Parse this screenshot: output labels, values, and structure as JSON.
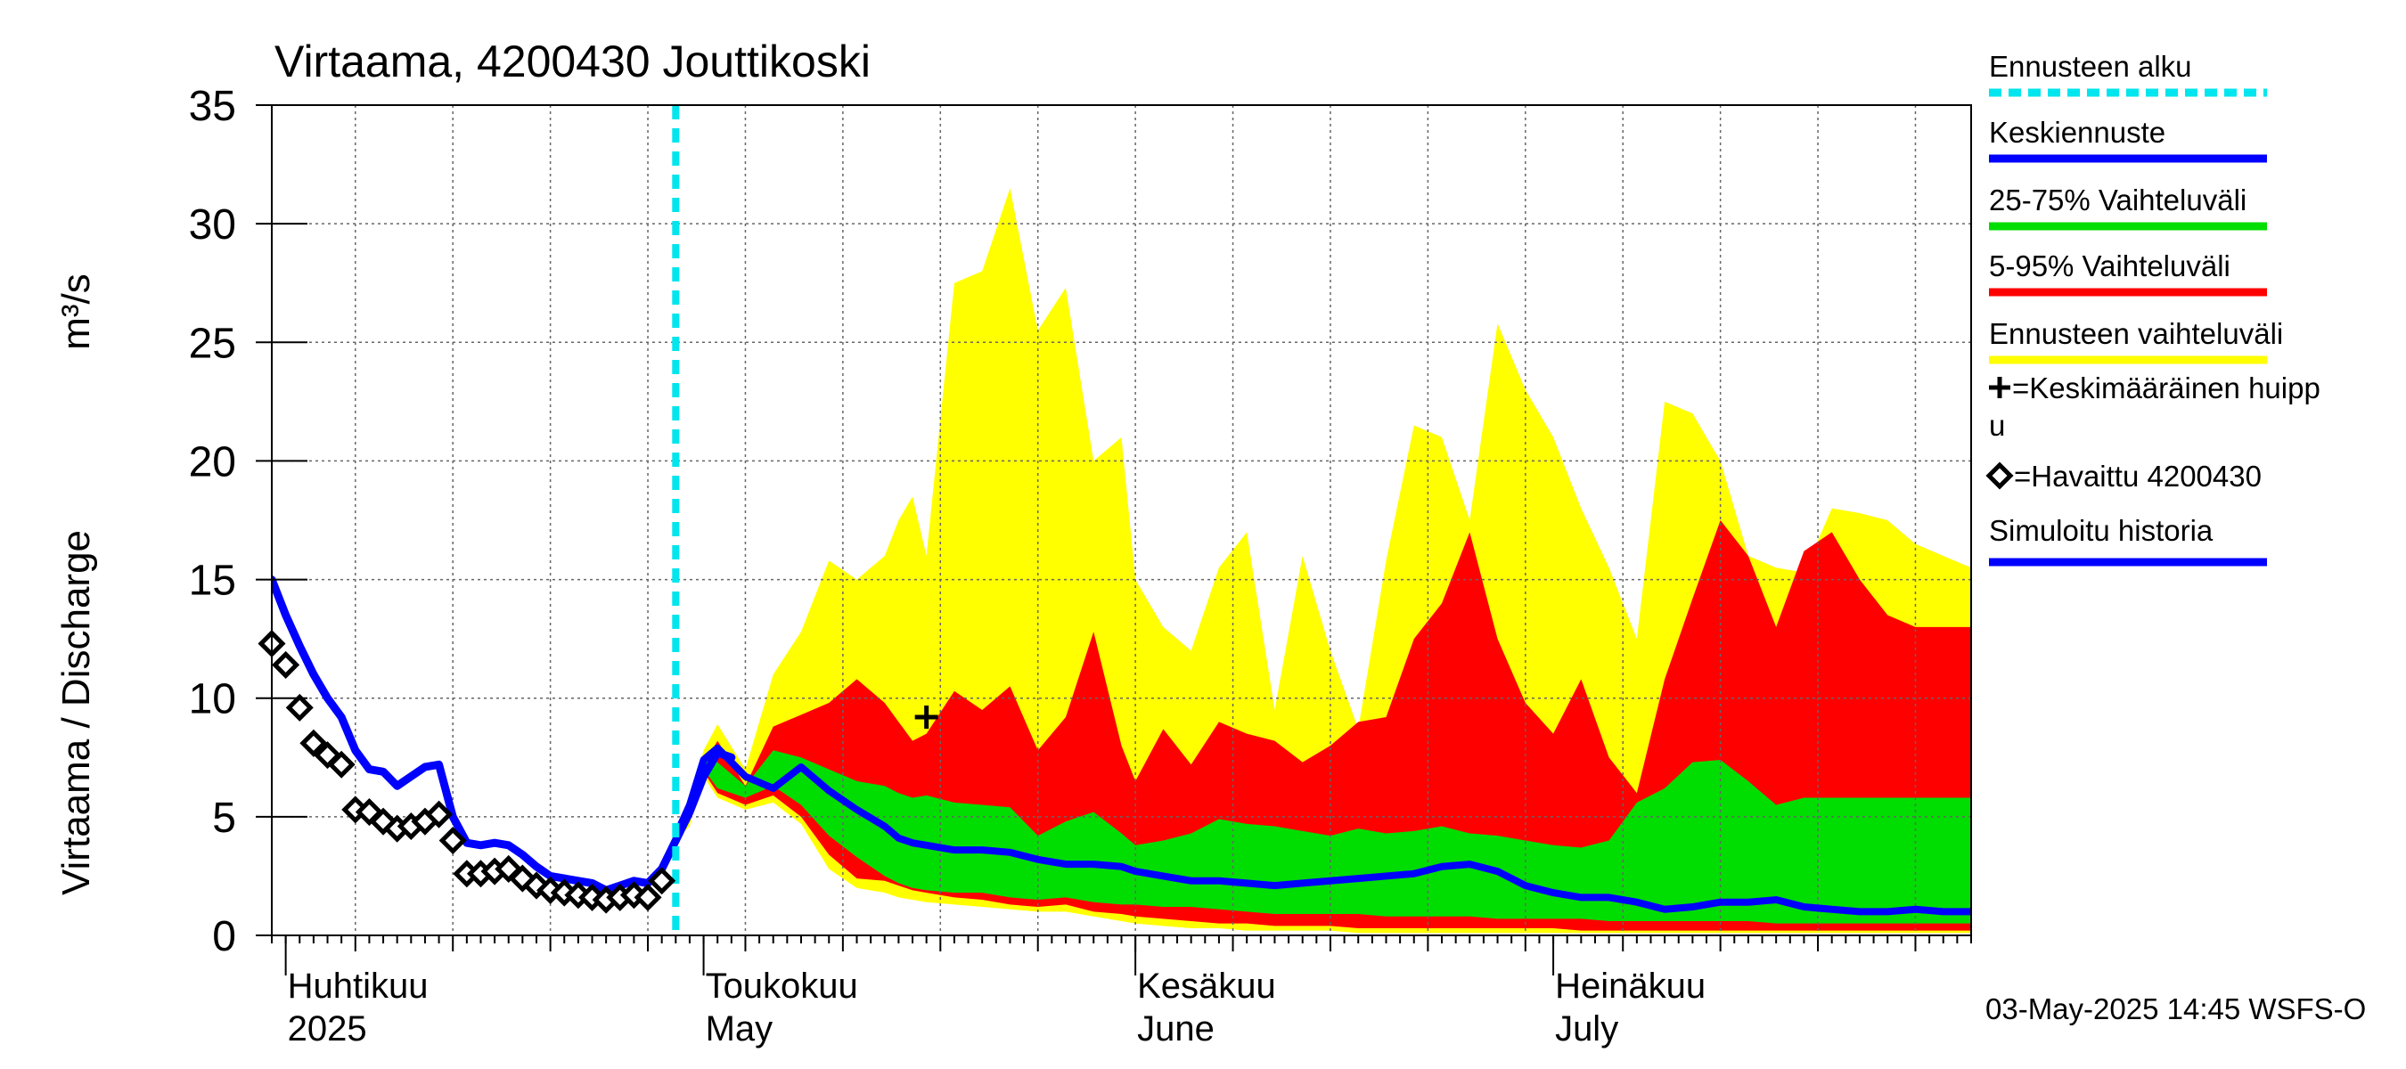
{
  "chart_data": {
    "type": "area",
    "title": "Virtaama, 4200430 Jouttikoski",
    "ylabel": "Virtaama / Discharge",
    "yunit": "m³/s",
    "ylim": [
      0,
      35
    ],
    "yticks": [
      0,
      5,
      10,
      15,
      20,
      25,
      30,
      35
    ],
    "xlim": [
      "2025-03-31",
      "2025-07-31"
    ],
    "x_month_labels": [
      {
        "date": "2025-04-01",
        "line1": "Huhtikuu",
        "line2": "2025"
      },
      {
        "date": "2025-05-01",
        "line1": "Toukokuu",
        "line2": "May"
      },
      {
        "date": "2025-06-01",
        "line1": "Kesäkuu",
        "line2": "June"
      },
      {
        "date": "2025-07-01",
        "line1": "Heinäkuu",
        "line2": "July"
      }
    ],
    "forecast_start": "2025-04-29",
    "grid": true,
    "legend_position": "right",
    "legend": [
      {
        "label": "Ennusteen alku",
        "symbol": "dashed-line",
        "color": "#00e5ee"
      },
      {
        "label": "Keskiennuste",
        "symbol": "line",
        "color": "#0000ff"
      },
      {
        "label": "25-75% Vaihteluväli",
        "symbol": "line",
        "color": "#00dd00"
      },
      {
        "label": "5-95% Vaihteluväli",
        "symbol": "line",
        "color": "#ff0000"
      },
      {
        "label": "Ennusteen vaihteluväli",
        "symbol": "line",
        "color": "#ffff00"
      },
      {
        "label": "=Keskimääräinen huipp",
        "label2": "u",
        "symbol": "plus",
        "color": "#000000"
      },
      {
        "label": "=Havaittu 4200430",
        "symbol": "diamond",
        "color": "#000000"
      },
      {
        "label": "Simuloitu historia",
        "symbol": "line",
        "color": "#0000ff"
      }
    ],
    "colors": {
      "full_range": "#ffff00",
      "range_5_95": "#ff0000",
      "range_25_75": "#00dd00",
      "median": "#0000ff",
      "simulated": "#0000ff",
      "forecast_start": "#00e5ee",
      "observed": "#000000"
    },
    "simulated_history": {
      "x": [
        "2025-03-31",
        "2025-04-01",
        "2025-04-02",
        "2025-04-03",
        "2025-04-04",
        "2025-04-05",
        "2025-04-06",
        "2025-04-07",
        "2025-04-08",
        "2025-04-09",
        "2025-04-10",
        "2025-04-11",
        "2025-04-12",
        "2025-04-13",
        "2025-04-14",
        "2025-04-15",
        "2025-04-16",
        "2025-04-17",
        "2025-04-18",
        "2025-04-19",
        "2025-04-20",
        "2025-04-21",
        "2025-04-22",
        "2025-04-23",
        "2025-04-24",
        "2025-04-25",
        "2025-04-26",
        "2025-04-27",
        "2025-04-28",
        "2025-04-29",
        "2025-04-30",
        "2025-05-01",
        "2025-05-02",
        "2025-05-03"
      ],
      "y": [
        15.0,
        13.5,
        12.2,
        11.0,
        10.0,
        9.2,
        7.8,
        7.0,
        6.9,
        6.3,
        6.7,
        7.1,
        7.2,
        5.0,
        3.9,
        3.8,
        3.9,
        3.8,
        3.4,
        2.9,
        2.5,
        2.4,
        2.3,
        2.2,
        1.9,
        2.1,
        2.3,
        2.2,
        2.8,
        4.0,
        5.2,
        6.7,
        7.7,
        7.5
      ]
    },
    "observed": {
      "x": [
        "2025-03-31",
        "2025-04-01",
        "2025-04-02",
        "2025-04-03",
        "2025-04-04",
        "2025-04-05",
        "2025-04-06",
        "2025-04-07",
        "2025-04-08",
        "2025-04-09",
        "2025-04-10",
        "2025-04-11",
        "2025-04-12",
        "2025-04-13",
        "2025-04-14",
        "2025-04-15",
        "2025-04-16",
        "2025-04-17",
        "2025-04-18",
        "2025-04-19",
        "2025-04-20",
        "2025-04-21",
        "2025-04-22",
        "2025-04-23",
        "2025-04-24",
        "2025-04-25",
        "2025-04-26",
        "2025-04-27",
        "2025-04-28"
      ],
      "y": [
        12.3,
        11.4,
        9.6,
        8.1,
        7.6,
        7.2,
        5.3,
        5.2,
        4.8,
        4.5,
        4.6,
        4.8,
        5.1,
        4.0,
        2.6,
        2.6,
        2.7,
        2.8,
        2.4,
        2.1,
        1.9,
        1.8,
        1.7,
        1.6,
        1.5,
        1.6,
        1.7,
        1.6,
        2.3
      ]
    },
    "mean_peak": {
      "x": "2025-05-17",
      "y": 9.2
    },
    "forecast": {
      "x": [
        "2025-04-29",
        "2025-04-30",
        "2025-05-01",
        "2025-05-02",
        "2025-05-04",
        "2025-05-06",
        "2025-05-08",
        "2025-05-10",
        "2025-05-12",
        "2025-05-14",
        "2025-05-15",
        "2025-05-16",
        "2025-05-17",
        "2025-05-19",
        "2025-05-21",
        "2025-05-23",
        "2025-05-25",
        "2025-05-27",
        "2025-05-29",
        "2025-05-31",
        "2025-06-01",
        "2025-06-03",
        "2025-06-05",
        "2025-06-07",
        "2025-06-09",
        "2025-06-11",
        "2025-06-13",
        "2025-06-15",
        "2025-06-17",
        "2025-06-19",
        "2025-06-21",
        "2025-06-23",
        "2025-06-25",
        "2025-06-27",
        "2025-06-29",
        "2025-07-01",
        "2025-07-03",
        "2025-07-05",
        "2025-07-07",
        "2025-07-09",
        "2025-07-11",
        "2025-07-13",
        "2025-07-15",
        "2025-07-17",
        "2025-07-19",
        "2025-07-21",
        "2025-07-23",
        "2025-07-25",
        "2025-07-27",
        "2025-07-29",
        "2025-07-31"
      ],
      "p100": [
        4.0,
        5.5,
        7.8,
        8.9,
        7.0,
        11.0,
        12.8,
        15.8,
        15.0,
        16.0,
        17.5,
        18.5,
        16.0,
        27.5,
        28.0,
        31.5,
        25.5,
        27.3,
        20.0,
        21.0,
        15.0,
        13.0,
        12.0,
        15.5,
        17.0,
        9.5,
        16.0,
        12.0,
        8.7,
        15.8,
        21.5,
        21.0,
        17.5,
        25.8,
        23.0,
        21.0,
        18.0,
        15.5,
        12.5,
        22.5,
        22.0,
        20.0,
        16.0,
        15.5,
        15.3,
        18.0,
        17.8,
        17.5,
        16.5,
        16.0,
        15.5
      ],
      "p95": [
        4.0,
        5.2,
        7.2,
        8.2,
        6.3,
        8.8,
        9.3,
        9.8,
        10.8,
        9.8,
        9.0,
        8.2,
        8.5,
        10.3,
        9.5,
        10.5,
        7.8,
        9.2,
        12.8,
        8.0,
        6.5,
        8.7,
        7.2,
        9.0,
        8.5,
        8.2,
        7.3,
        8.0,
        9.0,
        9.2,
        12.5,
        14.0,
        17.0,
        12.5,
        9.8,
        8.5,
        10.8,
        7.5,
        6.0,
        10.8,
        14.2,
        17.5,
        16.0,
        13.0,
        16.2,
        17.0,
        15.0,
        13.5,
        13.0,
        13.0,
        13.0
      ],
      "p75": [
        4.0,
        5.0,
        7.4,
        7.3,
        6.3,
        7.8,
        7.5,
        7.0,
        6.5,
        6.3,
        6.0,
        5.8,
        5.9,
        5.6,
        5.5,
        5.4,
        4.2,
        4.8,
        5.2,
        4.3,
        3.8,
        4.0,
        4.3,
        4.9,
        4.7,
        4.6,
        4.4,
        4.2,
        4.5,
        4.3,
        4.4,
        4.6,
        4.3,
        4.2,
        4.0,
        3.8,
        3.7,
        4.0,
        5.6,
        6.2,
        7.3,
        7.4,
        6.5,
        5.5,
        5.8,
        5.8,
        5.8,
        5.8,
        5.8,
        5.8,
        5.8
      ],
      "p25": [
        4.0,
        5.0,
        7.0,
        6.2,
        5.8,
        6.3,
        5.5,
        4.2,
        3.3,
        2.5,
        2.2,
        2.0,
        1.9,
        1.8,
        1.8,
        1.6,
        1.5,
        1.6,
        1.4,
        1.3,
        1.3,
        1.2,
        1.2,
        1.1,
        1.0,
        0.9,
        0.9,
        0.9,
        0.9,
        0.8,
        0.8,
        0.8,
        0.8,
        0.7,
        0.7,
        0.7,
        0.7,
        0.6,
        0.6,
        0.6,
        0.6,
        0.6,
        0.6,
        0.5,
        0.5,
        0.5,
        0.5,
        0.5,
        0.5,
        0.5,
        0.5
      ],
      "p5": [
        4.0,
        4.8,
        6.9,
        6.0,
        5.5,
        5.9,
        5.0,
        3.4,
        2.4,
        2.3,
        2.1,
        1.9,
        1.8,
        1.6,
        1.5,
        1.3,
        1.2,
        1.3,
        1.0,
        0.9,
        0.8,
        0.7,
        0.6,
        0.5,
        0.5,
        0.4,
        0.4,
        0.4,
        0.3,
        0.3,
        0.3,
        0.3,
        0.3,
        0.3,
        0.3,
        0.3,
        0.2,
        0.2,
        0.2,
        0.2,
        0.2,
        0.2,
        0.2,
        0.2,
        0.2,
        0.2,
        0.2,
        0.2,
        0.2,
        0.2,
        0.2
      ],
      "p0": [
        4.0,
        4.6,
        6.7,
        5.8,
        5.3,
        5.6,
        4.7,
        2.8,
        2.0,
        1.8,
        1.6,
        1.5,
        1.4,
        1.3,
        1.2,
        1.1,
        1.0,
        1.0,
        0.8,
        0.6,
        0.5,
        0.4,
        0.3,
        0.3,
        0.2,
        0.2,
        0.2,
        0.2,
        0.1,
        0.1,
        0.1,
        0.1,
        0.1,
        0.1,
        0.1,
        0.1,
        0.1,
        0.1,
        0.1,
        0.1,
        0.1,
        0.1,
        0.1,
        0.1,
        0.1,
        0.1,
        0.1,
        0.1,
        0.1,
        0.1,
        0.1
      ],
      "median": [
        4.2,
        5.5,
        7.4,
        7.9,
        6.7,
        6.2,
        7.1,
        6.1,
        5.3,
        4.6,
        4.1,
        3.9,
        3.8,
        3.6,
        3.6,
        3.5,
        3.2,
        3.0,
        3.0,
        2.9,
        2.7,
        2.5,
        2.3,
        2.3,
        2.2,
        2.1,
        2.2,
        2.3,
        2.4,
        2.5,
        2.6,
        2.9,
        3.0,
        2.7,
        2.1,
        1.8,
        1.6,
        1.6,
        1.4,
        1.1,
        1.2,
        1.4,
        1.4,
        1.5,
        1.2,
        1.1,
        1.0,
        1.0,
        1.1,
        1.0,
        1.0
      ]
    },
    "footer": "03-May-2025 14:45 WSFS-O"
  }
}
